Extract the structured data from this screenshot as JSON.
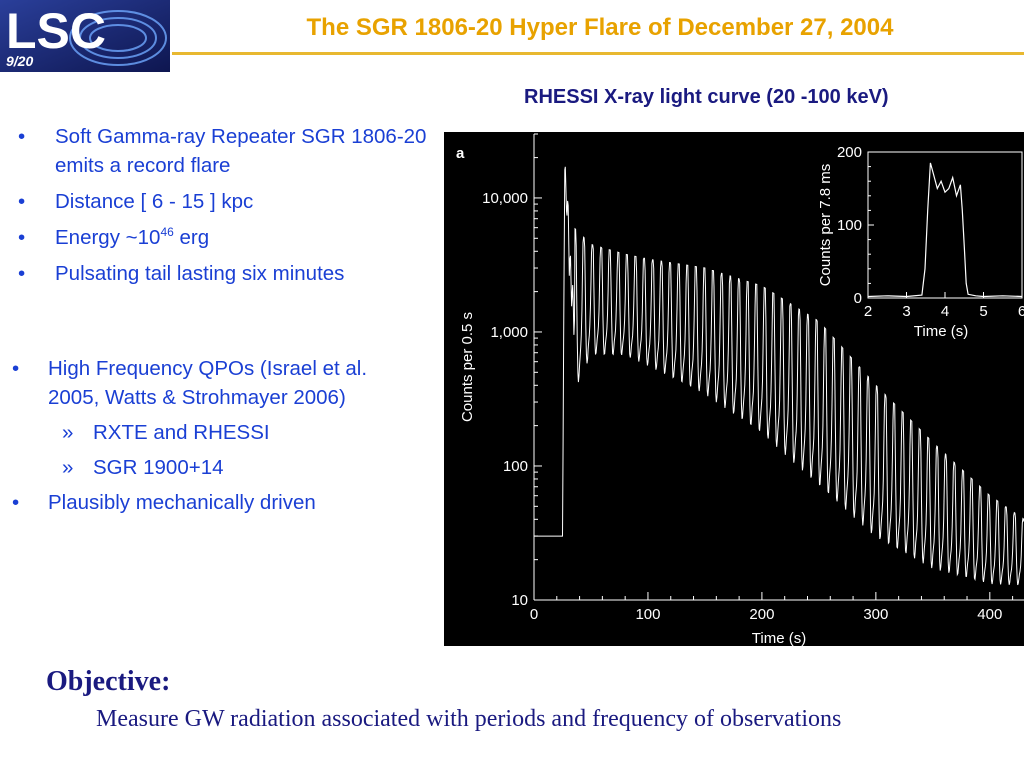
{
  "header": {
    "logo_text": "LSC",
    "slide_number": "9/20",
    "title": "The SGR 1806-20 Hyper Flare of December 27, 2004"
  },
  "chart_title": "RHESSI X-ray light curve (20 -100 keV)",
  "bullets_top": [
    {
      "text": "Soft Gamma-ray Repeater SGR 1806-20 emits a record flare"
    },
    {
      "text": "Distance [ 6 - 15 ] kpc"
    },
    {
      "pre": "Energy ~10",
      "sup": "46",
      "post": " erg"
    },
    {
      "text": "Pulsating tail lasting six minutes"
    }
  ],
  "bullets_bottom": [
    {
      "text": "High Frequency QPOs (Israel et al. 2005, Watts & Strohmayer 2006)"
    },
    {
      "text": "RXTE and RHESSI",
      "sub": true
    },
    {
      "text": "SGR 1900+14",
      "sub": true
    },
    {
      "text": "Plausibly mechanically driven"
    }
  ],
  "objective": {
    "heading": "Objective:",
    "text": "Measure GW radiation associated with periods and frequency of observations"
  },
  "colors": {
    "title": "#e8a200",
    "bullets": "#1a3fd4",
    "objective": "#1a1a80",
    "plot_bg": "#000000",
    "plot_fg": "#ffffff"
  },
  "chart_data": [
    {
      "type": "line",
      "panel_label": "a",
      "xlabel": "Time (s)",
      "ylabel": "Counts per 0.5 s",
      "xlim": [
        0,
        430
      ],
      "ylim": [
        10,
        30000
      ],
      "yscale": "log",
      "xticks": [
        0,
        100,
        200,
        300,
        400
      ],
      "yticks": [
        10,
        100,
        1000,
        10000
      ],
      "yticklabels": [
        "10",
        "100",
        "1,000",
        "10,000"
      ],
      "pulse_period_s": 7.56,
      "series": [
        {
          "x": [
            0,
            25,
            27,
            28,
            29,
            30,
            31,
            35,
            50,
            80,
            100,
            150,
            200,
            250,
            300,
            350,
            400,
            430
          ],
          "upper": [
            30,
            30,
            20000,
            12000,
            16000,
            12000,
            9000,
            6000,
            4500,
            3800,
            3500,
            3000,
            2200,
            1200,
            400,
            150,
            60,
            40
          ],
          "lower": [
            30,
            30,
            20000,
            8000,
            6000,
            4000,
            1500,
            300,
            600,
            600,
            500,
            300,
            150,
            60,
            25,
            15,
            12,
            12
          ]
        }
      ]
    },
    {
      "type": "line",
      "inset": true,
      "xlabel": "Time (s)",
      "ylabel": "Counts per 7.8 ms",
      "xlim": [
        2,
        6
      ],
      "ylim": [
        0,
        200
      ],
      "xticks": [
        2,
        3,
        4,
        5,
        6
      ],
      "yticks": [
        0,
        100,
        200
      ],
      "series": [
        {
          "x": [
            2,
            2.5,
            3.0,
            3.4,
            3.48,
            3.55,
            3.62,
            3.7,
            3.8,
            3.9,
            4.0,
            4.1,
            4.2,
            4.3,
            4.4,
            4.45,
            4.5,
            4.55,
            4.6,
            4.8,
            5.0,
            5.5,
            6.0
          ],
          "values": [
            2,
            3,
            2,
            4,
            40,
            120,
            185,
            170,
            150,
            160,
            145,
            150,
            165,
            140,
            155,
            120,
            70,
            20,
            5,
            3,
            2,
            3,
            2
          ]
        }
      ]
    }
  ]
}
